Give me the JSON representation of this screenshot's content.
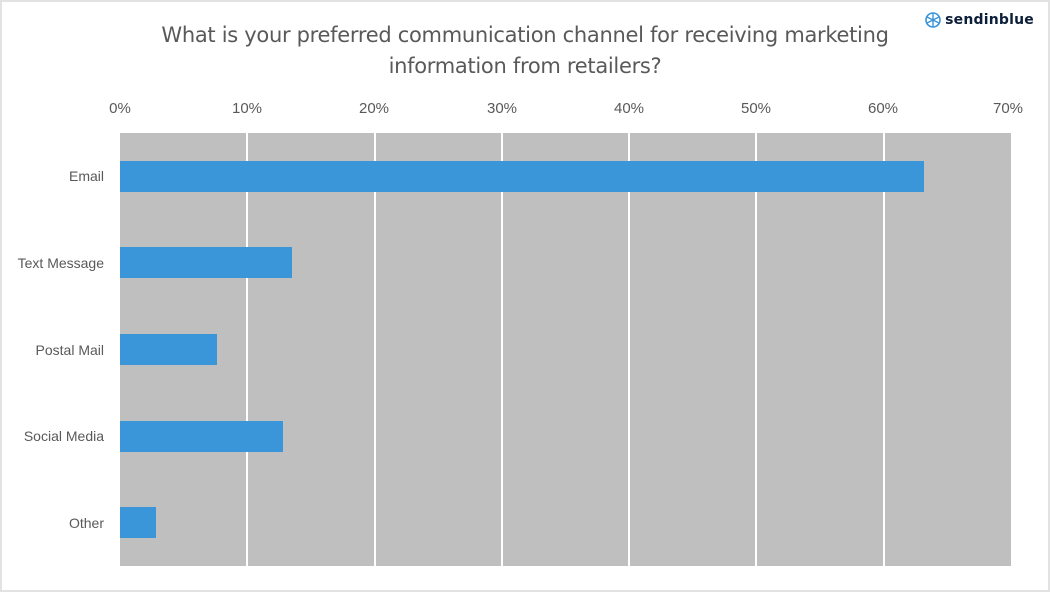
{
  "brand": {
    "name": "sendinblue",
    "icon": "sendinblue-logo-icon",
    "color": "#0b1f3a"
  },
  "colors": {
    "bar": "#3a95d9",
    "plot_background": "#bfbfbf",
    "gridline": "#ffffff",
    "text": "#595959"
  },
  "chart_data": {
    "type": "bar",
    "orientation": "horizontal",
    "title": "What is your preferred communication channel for receiving marketing information from retailers?",
    "title_lines": [
      "What is your preferred communication channel for receiving marketing",
      "information from retailers?"
    ],
    "categories": [
      "Email",
      "Text Message",
      "Postal Mail",
      "Social Media",
      "Other"
    ],
    "values": [
      63.2,
      13.5,
      7.6,
      12.8,
      2.8
    ],
    "unit": "%",
    "xlabel": "",
    "ylabel": "",
    "xlim": [
      0,
      70
    ],
    "x_ticks": [
      "0%",
      "10%",
      "20%",
      "30%",
      "40%",
      "50%",
      "60%",
      "70%"
    ],
    "x_axis_position": "top",
    "grid": true,
    "legend": null
  }
}
